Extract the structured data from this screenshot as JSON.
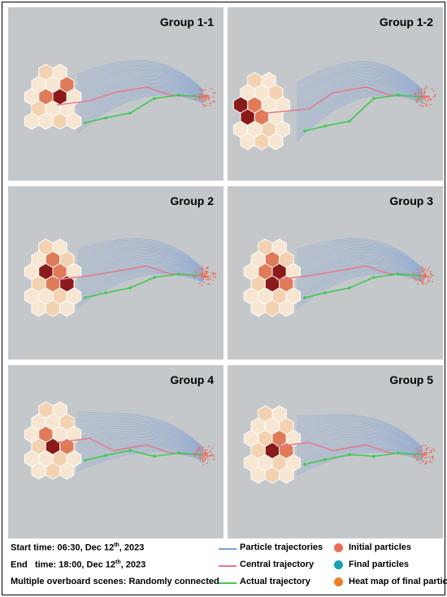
{
  "panels": [
    {
      "title": "Group 1-1"
    },
    {
      "title": "Group 1-2"
    },
    {
      "title": "Group 2"
    },
    {
      "title": "Group 3"
    },
    {
      "title": "Group 4"
    },
    {
      "title": "Group 5"
    }
  ],
  "info": {
    "start_label": "Start time:",
    "start_value": "06:30, Dec 12",
    "start_sup": "th",
    "start_year": ", 2023",
    "end_label": "End   time:",
    "end_value": "18:00, Dec 12",
    "end_sup": "th",
    "end_year": ", 2023",
    "scenes_label": "Multiple overboard scenes:",
    "scenes_value": "Randomly connected"
  },
  "legend": {
    "particle_traj": "Particle trajectories",
    "central_traj": "Central trajectory",
    "actual_traj": "Actual trajectory",
    "initial": "Initial particles",
    "final": "Final particles",
    "heatmap": "Heat map of final particles"
  },
  "colors": {
    "particle": "#7d9ed6",
    "central": "#e8758a",
    "actual": "#3ec94e",
    "initial": "#ec6c58",
    "final": "#17a2b5",
    "heat": "#f07f22",
    "panel_bg": "#c4c8cb"
  }
}
